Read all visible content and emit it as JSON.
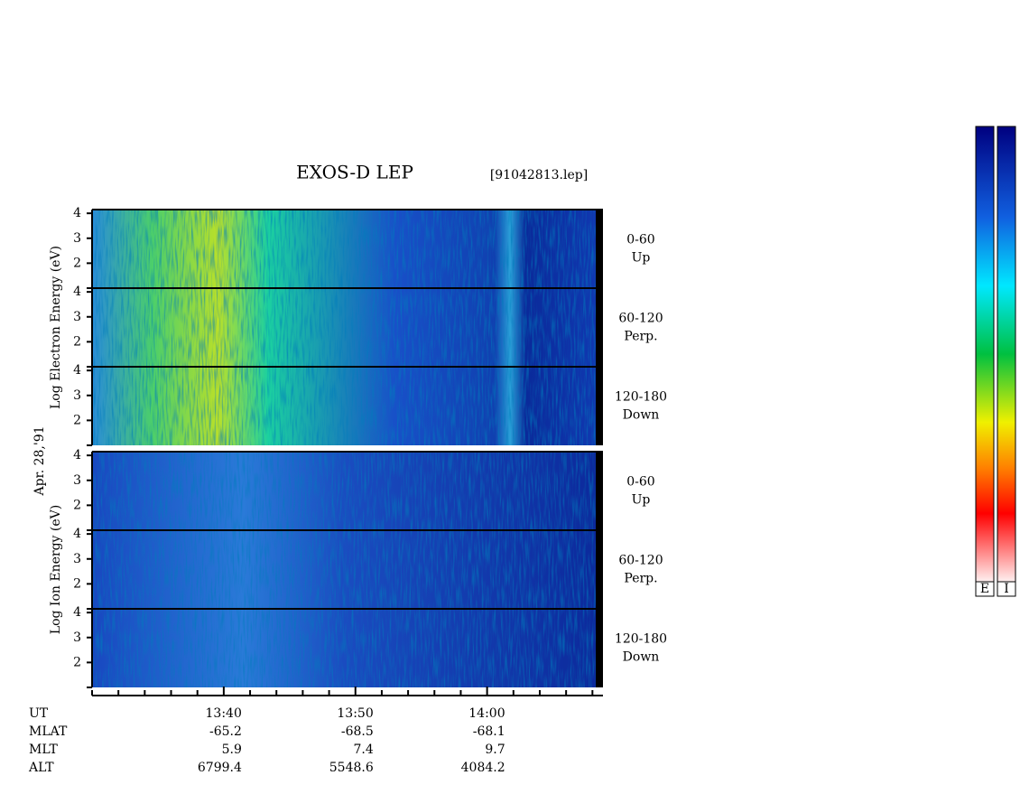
{
  "chart_data": {
    "type": "spectrogram",
    "title": "EXOS-D LEP",
    "file": "[91042813.lep]",
    "date": "Apr. 28,'91",
    "ylim": [
      1,
      4.15
    ],
    "yticks": [
      2,
      3,
      4
    ],
    "groups": [
      {
        "ylabel": "Log Electron Energy (eV)",
        "panels": [
          {
            "pitch": "0-60",
            "direction": "Up"
          },
          {
            "pitch": "60-120",
            "direction": "Perp."
          },
          {
            "pitch": "120-180",
            "direction": "Down"
          }
        ]
      },
      {
        "ylabel": "Log Ion Energy (eV)",
        "panels": [
          {
            "pitch": "0-60",
            "direction": "Up"
          },
          {
            "pitch": "60-120",
            "direction": "Perp."
          },
          {
            "pitch": "120-180",
            "direction": "Down"
          }
        ]
      }
    ],
    "xlim": [
      30,
      68.8
    ],
    "xticks": [
      {
        "value": 40,
        "label": "13:40"
      },
      {
        "value": 50,
        "label": "13:50"
      },
      {
        "value": 60,
        "label": "14:00"
      }
    ],
    "minor_xticks": [
      30,
      32,
      34,
      36,
      38,
      42,
      44,
      46,
      48,
      52,
      54,
      56,
      58,
      62,
      64,
      66,
      68
    ],
    "rows": [
      {
        "name": "UT"
      },
      {
        "name": "MLAT",
        "values": [
          -65.2,
          -68.5,
          -68.1
        ]
      },
      {
        "name": "MLT",
        "values": [
          5.9,
          7.4,
          9.7
        ]
      },
      {
        "name": "ALT",
        "values": [
          6799.4,
          5548.6,
          4084.2
        ]
      }
    ],
    "colorbars": [
      "E",
      "I"
    ]
  }
}
